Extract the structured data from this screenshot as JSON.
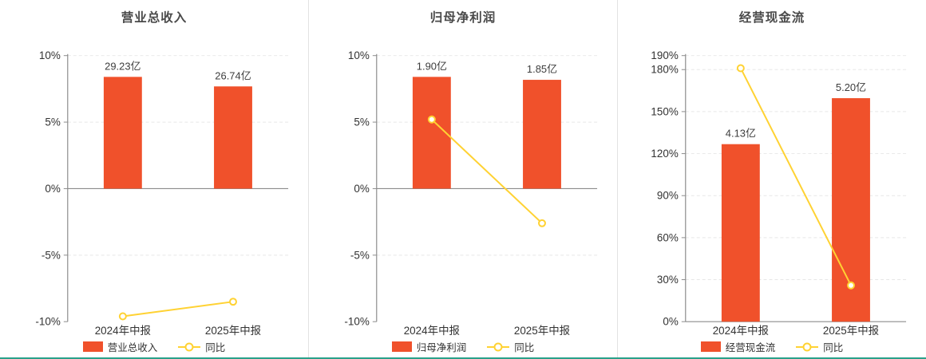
{
  "colors": {
    "bar": "#f0512b",
    "line": "#ffd233",
    "axis": "#8c8c8c",
    "grid": "#e7e7e7",
    "text": "#333333",
    "title": "#4a4a4a",
    "divider": "#e2e2e2",
    "bottom_border": "#2aa18a"
  },
  "chart_data": [
    {
      "type": "bar+line",
      "title": "营业总收入",
      "categories": [
        "2024年中报",
        "2025年中报"
      ],
      "bars": {
        "name": "营业总收入",
        "values": [
          29.23,
          26.74
        ],
        "labels": [
          "29.23亿",
          "26.74亿"
        ]
      },
      "line": {
        "name": "同比",
        "values": [
          -9.6,
          -8.5
        ]
      },
      "y_axis": {
        "min": -10,
        "max": 10,
        "ticks": [
          10,
          5,
          0,
          -5,
          -10
        ],
        "tick_labels": [
          "10%",
          "5%",
          "0%",
          "-5%",
          "-10%"
        ]
      },
      "legend_position": "bottom",
      "grid": "dashed-horizontal"
    },
    {
      "type": "bar+line",
      "title": "归母净利润",
      "categories": [
        "2024年中报",
        "2025年中报"
      ],
      "bars": {
        "name": "归母净利润",
        "values": [
          1.9,
          1.85
        ],
        "labels": [
          "1.90亿",
          "1.85亿"
        ]
      },
      "line": {
        "name": "同比",
        "values": [
          5.2,
          -2.6
        ]
      },
      "y_axis": {
        "min": -10,
        "max": 10,
        "ticks": [
          10,
          5,
          0,
          -5,
          -10
        ],
        "tick_labels": [
          "10%",
          "5%",
          "0%",
          "-5%",
          "-10%"
        ]
      },
      "legend_position": "bottom",
      "grid": "dashed-horizontal"
    },
    {
      "type": "bar+line",
      "title": "经营现金流",
      "categories": [
        "2024年中报",
        "2025年中报"
      ],
      "bars": {
        "name": "经营现金流",
        "values": [
          4.13,
          5.2
        ],
        "labels": [
          "4.13亿",
          "5.20亿"
        ]
      },
      "line": {
        "name": "同比",
        "values": [
          181.0,
          25.9
        ]
      },
      "y_axis": {
        "min": 0,
        "max": 190,
        "ticks": [
          190,
          180,
          150,
          120,
          90,
          60,
          30,
          0
        ],
        "tick_labels": [
          "190%",
          "180%",
          "150%",
          "120%",
          "90%",
          "60%",
          "30%",
          "0%"
        ]
      },
      "legend_position": "bottom",
      "grid": "dashed-horizontal"
    }
  ]
}
